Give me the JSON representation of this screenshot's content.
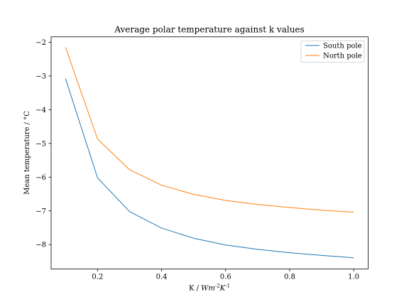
{
  "chart_data": {
    "type": "line",
    "title": "Average polar temperature against k values",
    "xlabel": "K / Wm^{-2}K^{-1}",
    "ylabel": "Mean temperature / °C",
    "x": [
      0.1,
      0.2,
      0.3,
      0.4,
      0.5,
      0.6,
      0.7,
      0.8,
      0.9,
      1.0
    ],
    "xlim": [
      0.055,
      1.045
    ],
    "ylim": [
      -8.72,
      -1.84
    ],
    "xticks": [
      0.2,
      0.4,
      0.6,
      0.8,
      1.0
    ],
    "xtick_labels": [
      "0.2",
      "0.4",
      "0.6",
      "0.8",
      "1.0"
    ],
    "yticks": [
      -2,
      -3,
      -4,
      -5,
      -6,
      -7,
      -8
    ],
    "ytick_labels": [
      "−2",
      "−3",
      "−4",
      "−5",
      "−6",
      "−7",
      "−8"
    ],
    "grid": false,
    "legend_position": "top-right",
    "series": [
      {
        "name": "South pole",
        "color": "#1f77b4",
        "values": [
          -3.08,
          -6.02,
          -7.02,
          -7.51,
          -7.81,
          -8.01,
          -8.14,
          -8.24,
          -8.32,
          -8.39
        ]
      },
      {
        "name": "North pole",
        "color": "#ff7f0e",
        "values": [
          -2.15,
          -4.87,
          -5.78,
          -6.24,
          -6.51,
          -6.69,
          -6.81,
          -6.9,
          -6.98,
          -7.04
        ]
      }
    ]
  }
}
